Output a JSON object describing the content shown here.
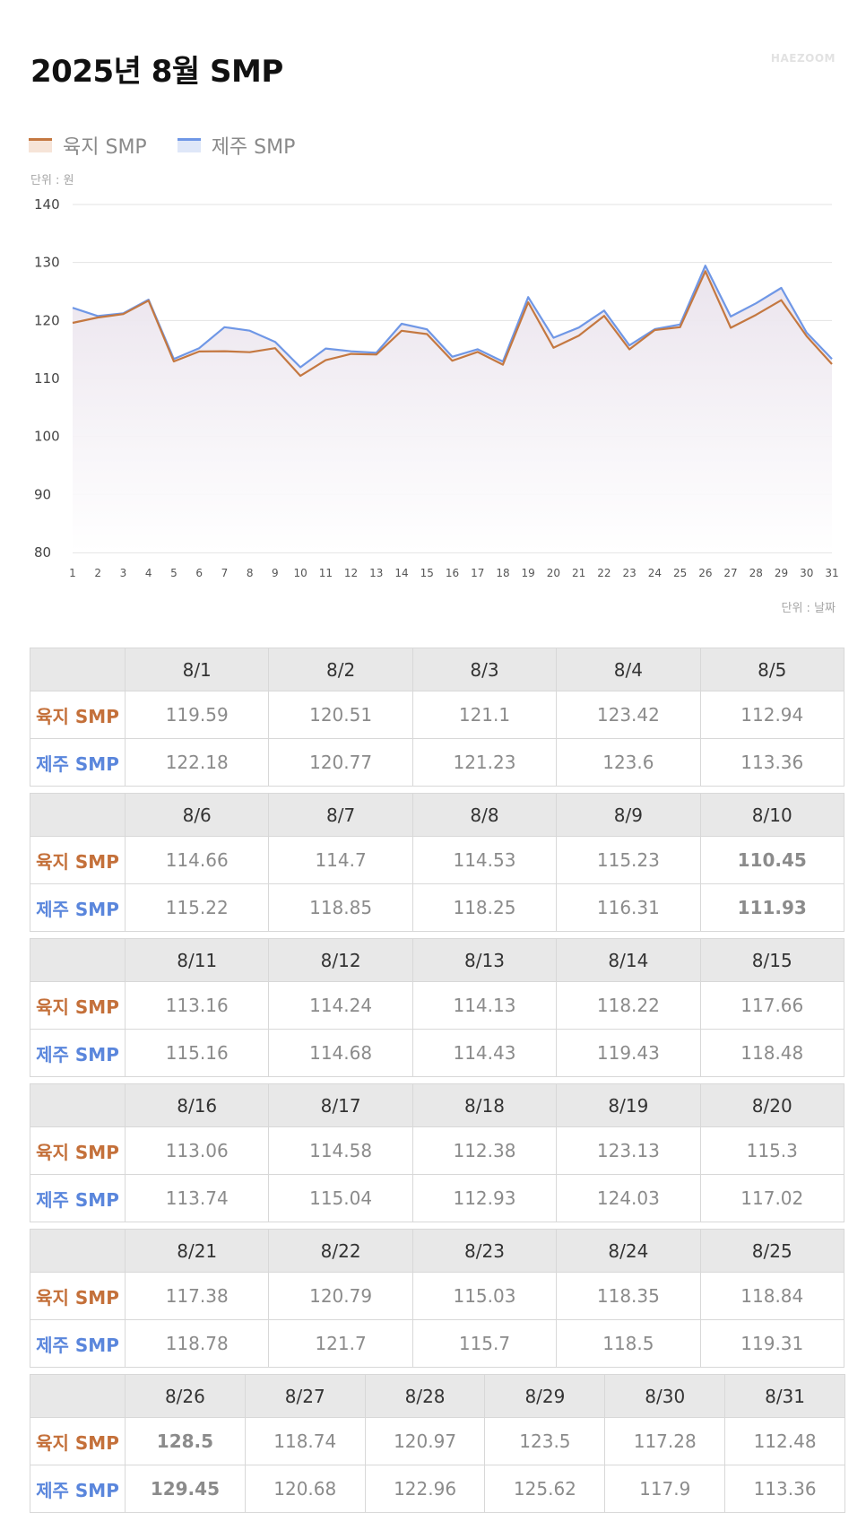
{
  "title": "2025년 8월 SMP",
  "brand": "HAEZOOM",
  "legend": {
    "land": "육지 SMP",
    "jeju": "제주 SMP"
  },
  "units": {
    "y": "단위 : 원",
    "x": "단위 : 날짜"
  },
  "colors": {
    "land": "#c47841",
    "jeju": "#6f97e6",
    "low_bg": "#e8f1fd",
    "high_bg": "#fde7e3"
  },
  "chart_data": {
    "type": "line",
    "x": [
      1,
      2,
      3,
      4,
      5,
      6,
      7,
      8,
      9,
      10,
      11,
      12,
      13,
      14,
      15,
      16,
      17,
      18,
      19,
      20,
      21,
      22,
      23,
      24,
      25,
      26,
      27,
      28,
      29,
      30,
      31
    ],
    "ylim": [
      80,
      140
    ],
    "yticks": [
      80,
      90,
      100,
      110,
      120,
      130,
      140
    ],
    "grid": true,
    "legend_position": "top-left",
    "series": [
      {
        "name": "육지 SMP",
        "values": [
          119.59,
          120.51,
          121.1,
          123.42,
          112.94,
          114.66,
          114.7,
          114.53,
          115.23,
          110.45,
          113.16,
          114.24,
          114.13,
          118.22,
          117.66,
          113.06,
          114.58,
          112.38,
          123.13,
          115.3,
          117.38,
          120.79,
          115.03,
          118.35,
          118.84,
          128.5,
          118.74,
          120.97,
          123.5,
          117.28,
          112.48
        ]
      },
      {
        "name": "제주 SMP",
        "values": [
          122.18,
          120.77,
          121.23,
          123.6,
          113.36,
          115.22,
          118.85,
          118.25,
          116.31,
          111.93,
          115.16,
          114.68,
          114.43,
          119.43,
          118.48,
          113.74,
          115.04,
          112.93,
          124.03,
          117.02,
          118.78,
          121.7,
          115.7,
          118.5,
          119.31,
          129.45,
          120.68,
          122.96,
          125.62,
          117.9,
          113.36
        ]
      }
    ]
  },
  "table": {
    "row_labels": {
      "land": "육지 SMP",
      "jeju": "제주 SMP"
    },
    "blocks": [
      {
        "dates": [
          "8/1",
          "8/2",
          "8/3",
          "8/4",
          "8/5"
        ],
        "land": [
          "119.59",
          "120.51",
          "121.1",
          "123.42",
          "112.94"
        ],
        "jeju": [
          "122.18",
          "120.77",
          "121.23",
          "123.6",
          "113.36"
        ]
      },
      {
        "dates": [
          "8/6",
          "8/7",
          "8/8",
          "8/9",
          "8/10"
        ],
        "land": [
          "114.66",
          "114.7",
          "114.53",
          "115.23",
          "110.45"
        ],
        "jeju": [
          "115.22",
          "118.85",
          "118.25",
          "116.31",
          "111.93"
        ]
      },
      {
        "dates": [
          "8/11",
          "8/12",
          "8/13",
          "8/14",
          "8/15"
        ],
        "land": [
          "113.16",
          "114.24",
          "114.13",
          "118.22",
          "117.66"
        ],
        "jeju": [
          "115.16",
          "114.68",
          "114.43",
          "119.43",
          "118.48"
        ]
      },
      {
        "dates": [
          "8/16",
          "8/17",
          "8/18",
          "8/19",
          "8/20"
        ],
        "land": [
          "113.06",
          "114.58",
          "112.38",
          "123.13",
          "115.3"
        ],
        "jeju": [
          "113.74",
          "115.04",
          "112.93",
          "124.03",
          "117.02"
        ]
      },
      {
        "dates": [
          "8/21",
          "8/22",
          "8/23",
          "8/24",
          "8/25"
        ],
        "land": [
          "117.38",
          "120.79",
          "115.03",
          "118.35",
          "118.84"
        ],
        "jeju": [
          "118.78",
          "121.7",
          "115.7",
          "118.5",
          "119.31"
        ]
      },
      {
        "dates": [
          "8/26",
          "8/27",
          "8/28",
          "8/29",
          "8/30",
          "8/31"
        ],
        "land": [
          "128.5",
          "118.74",
          "120.97",
          "123.5",
          "117.28",
          "112.48"
        ],
        "jeju": [
          "129.45",
          "120.68",
          "122.96",
          "125.62",
          "117.9",
          "113.36"
        ]
      }
    ],
    "lowest_date": "8/10",
    "highest_date": "8/26"
  }
}
